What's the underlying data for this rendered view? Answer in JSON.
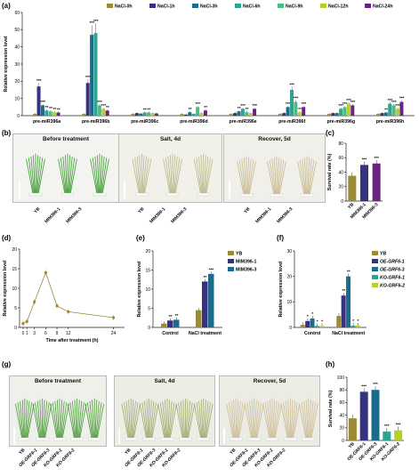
{
  "panels": {
    "a": "(a)",
    "b": "(b)",
    "c": "(c)",
    "d": "(d)",
    "e": "(e)",
    "f": "(f)",
    "g": "(g)",
    "h": "(h)"
  },
  "colors": {
    "c0": "#9c8a37",
    "c1": "#35327f",
    "c2": "#1b6c8c",
    "c3": "#2ca58e",
    "c4": "#4cbb87",
    "c5": "#b7cf2d",
    "c6": "#6a237e"
  },
  "chart_data": [
    {
      "id": "a",
      "type": "bar",
      "ylabel": "Relative expression level",
      "ylim": [
        0,
        60
      ],
      "yticks": [
        "0",
        "10",
        "20",
        "30",
        "40",
        "50",
        "60"
      ],
      "legend": [
        "NaCl-0h",
        "NaCl-1h",
        "NaCl-3h",
        "NaCl-6h",
        "NaCl-9h",
        "NaCl-12h",
        "NaCl-24h"
      ],
      "categories": [
        "pre-miR396a",
        "pre-miR396b",
        "pre-miR396c",
        "pre-miR396d",
        "pre-miR396e",
        "pre-miR396f",
        "pre-miR396g",
        "pre-miR396h"
      ],
      "series": [
        {
          "name": "NaCl-0h",
          "values": [
            1,
            1,
            1,
            1,
            1,
            1,
            1,
            1
          ]
        },
        {
          "name": "NaCl-1h",
          "values": [
            17,
            19,
            1.5,
            0.6,
            1.5,
            1.5,
            1.5,
            1.5
          ]
        },
        {
          "name": "NaCl-3h",
          "values": [
            6,
            47,
            1.2,
            2,
            2.5,
            5,
            1.5,
            1.8
          ]
        },
        {
          "name": "NaCl-6h",
          "values": [
            3,
            48,
            1.8,
            1,
            4,
            15,
            4,
            7
          ]
        },
        {
          "name": "NaCl-9h",
          "values": [
            2.5,
            6,
            1.8,
            5,
            2,
            8,
            5,
            6
          ]
        },
        {
          "name": "NaCl-12h",
          "values": [
            2,
            4,
            1.5,
            1.5,
            1.5,
            2,
            7,
            4
          ]
        },
        {
          "name": "NaCl-24h",
          "values": [
            1.8,
            3,
            1.3,
            3,
            4,
            5,
            6,
            8
          ]
        }
      ]
    },
    {
      "id": "c",
      "type": "bar",
      "ylabel": "Survival rate (%)",
      "ylim": [
        0,
        80
      ],
      "yticks": [
        "0",
        "20",
        "40",
        "60",
        "80"
      ],
      "categories": [
        "YB",
        "MIM396-1",
        "MIM396-3"
      ],
      "values": [
        35,
        50,
        52
      ],
      "stars": [
        "",
        "***",
        "***"
      ]
    },
    {
      "id": "d",
      "type": "line",
      "ylabel": "Relative expression level",
      "xlabel": "Time after treatment (h)",
      "ylim": [
        0,
        20
      ],
      "yticks": [
        "0",
        "5",
        "10",
        "15",
        "20"
      ],
      "xticks": [
        "0",
        "1",
        "3",
        "6",
        "9",
        "12",
        "24"
      ],
      "x": [
        0,
        1,
        3,
        6,
        9,
        12,
        24
      ],
      "y": [
        1,
        1.5,
        6.5,
        14,
        5.5,
        4,
        2.5
      ]
    },
    {
      "id": "e",
      "type": "bar",
      "ylabel": "Relative expression level",
      "ylim": [
        0,
        20
      ],
      "yticks": [
        "0",
        "5",
        "10",
        "15",
        "20"
      ],
      "categories": [
        "Control",
        "NaCl treatment"
      ],
      "legend": [
        "YB",
        "MIM396-1",
        "MIM396-3"
      ],
      "series": [
        {
          "name": "YB",
          "values": [
            1,
            4.5
          ]
        },
        {
          "name": "MIM396-1",
          "values": [
            1.8,
            12
          ]
        },
        {
          "name": "MIM396-3",
          "values": [
            2,
            14
          ]
        }
      ]
    },
    {
      "id": "f",
      "type": "bar",
      "ylabel": "Relative expression level",
      "ylim": [
        0,
        30
      ],
      "yticks": [
        "0",
        "10",
        "20",
        "30"
      ],
      "categories": [
        "Control",
        "NaCl treatment"
      ],
      "legend": [
        "YB",
        "OE-GRF6-1",
        "OE-GRF6-3",
        "KO-GRF6-1",
        "KO-GRF6-2"
      ],
      "series": [
        {
          "name": "YB",
          "values": [
            1,
            4.5
          ]
        },
        {
          "name": "OE-GRF6-1",
          "values": [
            2.5,
            12.5
          ]
        },
        {
          "name": "OE-GRF6-3",
          "values": [
            3.5,
            20
          ]
        },
        {
          "name": "KO-GRF6-1",
          "values": [
            0.6,
            0.7
          ]
        },
        {
          "name": "KO-GRF6-2",
          "values": [
            0.6,
            0.7
          ]
        }
      ]
    },
    {
      "id": "h",
      "type": "bar",
      "ylabel": "Survival rate (%)",
      "ylim": [
        0,
        100
      ],
      "yticks": [
        "0",
        "20",
        "40",
        "60",
        "80",
        "100"
      ],
      "categories": [
        "YB",
        "OE-GRF6-1",
        "OE-GRF6-3",
        "KO-GRF6-1",
        "KO-GRF6-2"
      ],
      "values": [
        35,
        77,
        80,
        14,
        16
      ],
      "stars": [
        "",
        "***",
        "***",
        "***",
        "***"
      ]
    }
  ],
  "photos": {
    "b": [
      "Before treatment",
      "Salt, 4d",
      "Recover, 5d"
    ],
    "b_labels": [
      "YB",
      "MIM396-1",
      "MIM396-3"
    ],
    "g": [
      "Before treatment",
      "Salt, 4d",
      "Recover, 5d"
    ],
    "g_labels": [
      "YB",
      "OE-GRF6-1",
      "OE-GRF6-3",
      "KO-GRF6-1",
      "KO-GRF6-2"
    ]
  }
}
